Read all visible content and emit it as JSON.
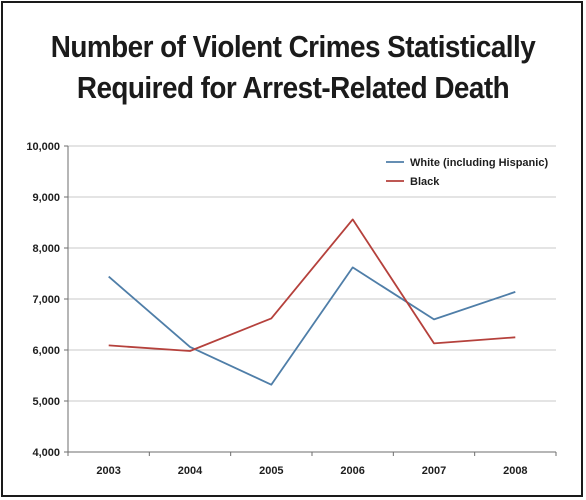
{
  "title_lines": [
    "Number of Violent Crimes Statistically",
    "Required for Arrest-Related Death"
  ],
  "chart_data": {
    "type": "line",
    "title": "Number of Violent Crimes Statistically Required for Arrest-Related Death",
    "categories": [
      "2003",
      "2004",
      "2005",
      "2006",
      "2007",
      "2008"
    ],
    "series": [
      {
        "name": "White (including Hispanic)",
        "color": "#4f7ea8",
        "values": [
          7440,
          6060,
          5320,
          7620,
          6600,
          7140
        ]
      },
      {
        "name": "Black",
        "color": "#b5413c",
        "values": [
          6090,
          5980,
          6620,
          8560,
          6130,
          6250
        ]
      }
    ],
    "ylim": [
      4000,
      10000
    ],
    "yticks": [
      4000,
      5000,
      6000,
      7000,
      8000,
      9000,
      10000
    ],
    "ytick_labels": [
      "4,000",
      "5,000",
      "6,000",
      "7,000",
      "8,000",
      "9,000",
      "10,000"
    ],
    "xlabel": "",
    "ylabel": "",
    "grid": true,
    "legend_position": "top-right"
  }
}
